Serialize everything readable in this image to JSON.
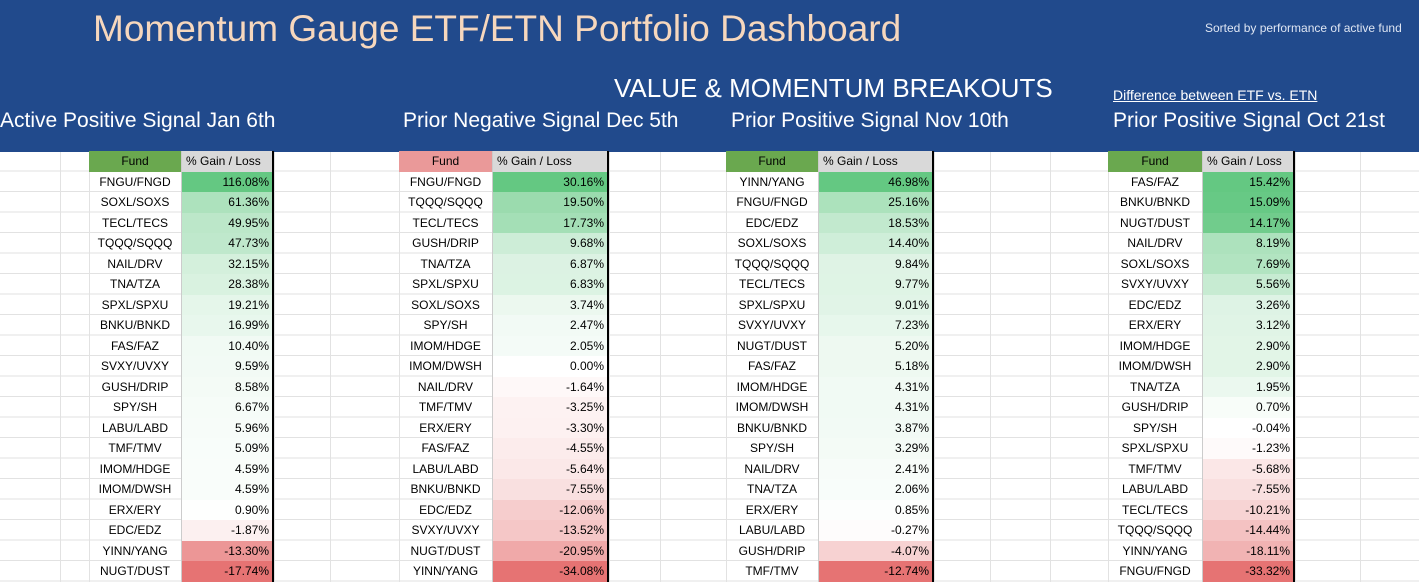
{
  "header": {
    "title": "Momentum Gauge ETF/ETN Portfolio Dashboard",
    "note": "Sorted by performance of active fund",
    "heading": "VALUE & MOMENTUM BREAKOUTS",
    "link": "Difference between ETF vs. ETN"
  },
  "tables": [
    {
      "label": "Active Positive Signal Jan 6th",
      "columns": [
        "Fund",
        "% Gain / Loss"
      ],
      "rows": [
        [
          "FNGU/FNGD",
          "116.08%"
        ],
        [
          "SOXL/SOXS",
          "61.36%"
        ],
        [
          "TECL/TECS",
          "49.95%"
        ],
        [
          "TQQQ/SQQQ",
          "47.73%"
        ],
        [
          "NAIL/DRV",
          "32.15%"
        ],
        [
          "TNA/TZA",
          "28.38%"
        ],
        [
          "SPXL/SPXU",
          "19.21%"
        ],
        [
          "BNKU/BNKD",
          "16.99%"
        ],
        [
          "FAS/FAZ",
          "10.40%"
        ],
        [
          "SVXY/UVXY",
          "9.59%"
        ],
        [
          "GUSH/DRIP",
          "8.58%"
        ],
        [
          "SPY/SH",
          "6.67%"
        ],
        [
          "LABU/LABD",
          "5.96%"
        ],
        [
          "TMF/TMV",
          "5.09%"
        ],
        [
          "IMOM/HDGE",
          "4.59%"
        ],
        [
          "IMOM/DWSH",
          "4.59%"
        ],
        [
          "ERX/ERY",
          "0.90%"
        ],
        [
          "EDC/EDZ",
          "-1.87%"
        ],
        [
          "YINN/YANG",
          "-13.30%"
        ],
        [
          "NUGT/DUST",
          "-17.74%"
        ]
      ]
    },
    {
      "label": "Prior Negative Signal Dec 5th",
      "columns": [
        "Fund",
        "% Gain / Loss"
      ],
      "rows": [
        [
          "FNGU/FNGD",
          "30.16%"
        ],
        [
          "TQQQ/SQQQ",
          "19.50%"
        ],
        [
          "TECL/TECS",
          "17.73%"
        ],
        [
          "GUSH/DRIP",
          "9.68%"
        ],
        [
          "TNA/TZA",
          "6.87%"
        ],
        [
          "SPXL/SPXU",
          "6.83%"
        ],
        [
          "SOXL/SOXS",
          "3.74%"
        ],
        [
          "SPY/SH",
          "2.47%"
        ],
        [
          "IMOM/HDGE",
          "2.05%"
        ],
        [
          "IMOM/DWSH",
          "0.00%"
        ],
        [
          "NAIL/DRV",
          "-1.64%"
        ],
        [
          "TMF/TMV",
          "-3.25%"
        ],
        [
          "ERX/ERY",
          "-3.30%"
        ],
        [
          "FAS/FAZ",
          "-4.55%"
        ],
        [
          "LABU/LABD",
          "-5.64%"
        ],
        [
          "BNKU/BNKD",
          "-7.55%"
        ],
        [
          "EDC/EDZ",
          "-12.06%"
        ],
        [
          "SVXY/UVXY",
          "-13.52%"
        ],
        [
          "NUGT/DUST",
          "-20.95%"
        ],
        [
          "YINN/YANG",
          "-34.08%"
        ]
      ]
    },
    {
      "label": "Prior Positive Signal Nov 10th",
      "columns": [
        "Fund",
        "% Gain / Loss"
      ],
      "rows": [
        [
          "YINN/YANG",
          "46.98%"
        ],
        [
          "FNGU/FNGD",
          "25.16%"
        ],
        [
          "EDC/EDZ",
          "18.53%"
        ],
        [
          "SOXL/SOXS",
          "14.40%"
        ],
        [
          "TQQQ/SQQQ",
          "9.84%"
        ],
        [
          "TECL/TECS",
          "9.77%"
        ],
        [
          "SPXL/SPXU",
          "9.01%"
        ],
        [
          "SVXY/UVXY",
          "7.23%"
        ],
        [
          "NUGT/DUST",
          "5.20%"
        ],
        [
          "FAS/FAZ",
          "5.18%"
        ],
        [
          "IMOM/HDGE",
          "4.31%"
        ],
        [
          "IMOM/DWSH",
          "4.31%"
        ],
        [
          "BNKU/BNKD",
          "3.87%"
        ],
        [
          "SPY/SH",
          "3.29%"
        ],
        [
          "NAIL/DRV",
          "2.41%"
        ],
        [
          "TNA/TZA",
          "2.06%"
        ],
        [
          "ERX/ERY",
          "0.85%"
        ],
        [
          "LABU/LABD",
          "-0.27%"
        ],
        [
          "GUSH/DRIP",
          "-4.07%"
        ],
        [
          "TMF/TMV",
          "-12.74%"
        ]
      ]
    },
    {
      "label": "Prior Positive Signal Oct 21st",
      "columns": [
        "Fund",
        "% Gain / Loss"
      ],
      "rows": [
        [
          "FAS/FAZ",
          "15.42%"
        ],
        [
          "BNKU/BNKD",
          "15.09%"
        ],
        [
          "NUGT/DUST",
          "14.17%"
        ],
        [
          "NAIL/DRV",
          "8.19%"
        ],
        [
          "SOXL/SOXS",
          "7.69%"
        ],
        [
          "SVXY/UVXY",
          "5.56%"
        ],
        [
          "EDC/EDZ",
          "3.26%"
        ],
        [
          "ERX/ERY",
          "3.12%"
        ],
        [
          "IMOM/HDGE",
          "2.90%"
        ],
        [
          "IMOM/DWSH",
          "2.90%"
        ],
        [
          "TNA/TZA",
          "1.95%"
        ],
        [
          "GUSH/DRIP",
          "0.70%"
        ],
        [
          "SPY/SH",
          "-0.04%"
        ],
        [
          "SPXL/SPXU",
          "-1.23%"
        ],
        [
          "TMF/TMV",
          "-5.68%"
        ],
        [
          "LABU/LABD",
          "-7.55%"
        ],
        [
          "TECL/TECS",
          "-10.21%"
        ],
        [
          "TQQQ/SQQQ",
          "-14.44%"
        ],
        [
          "YINN/YANG",
          "-18.11%"
        ],
        [
          "FNGU/FNGD",
          "-33.32%"
        ]
      ]
    }
  ]
}
